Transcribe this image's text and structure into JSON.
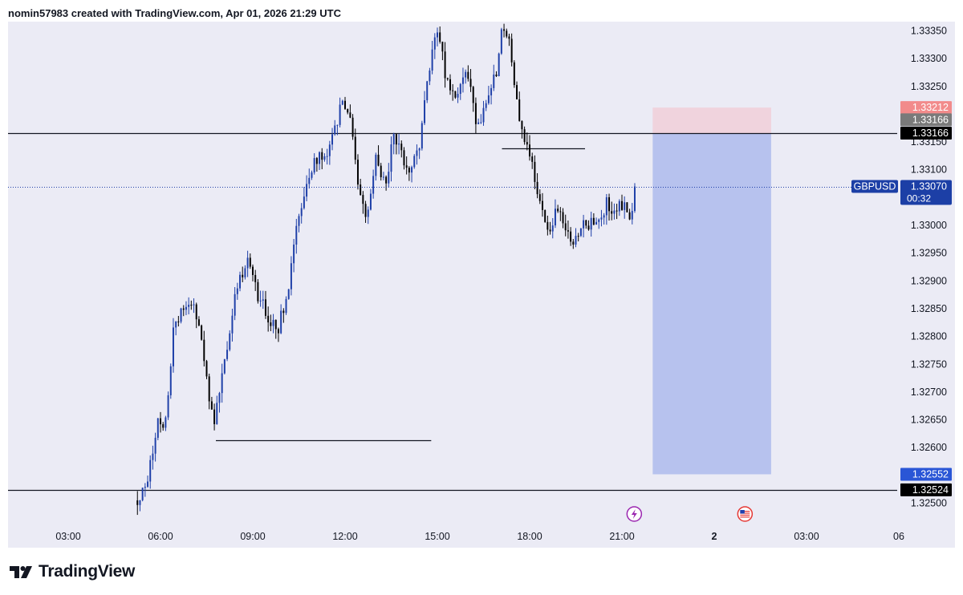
{
  "header": {
    "caption": "nomin57983 created with TradingView.com, Apr 01, 2026 21:29 UTC"
  },
  "footer": {
    "brand": "TradingView",
    "logo_icon": "tradingview-logo-icon"
  },
  "colors": {
    "background": "#ebebf5",
    "bull": "#1e3fa8",
    "bear": "#000000",
    "profit_zone": "#b7c2ee",
    "loss_zone": "#f0d3dd",
    "symbol_label": "#1c3fa6",
    "stop_label": "#f28b8b",
    "mid_label": "#7a7a7a",
    "line_label": "#000000",
    "target_label": "#2a56d6"
  },
  "chart_data": {
    "type": "candlestick",
    "symbol": "GBPUSD",
    "last_price": 1.3307,
    "countdown": "00:32",
    "ylim": [
      1.3246,
      1.33365
    ],
    "xlim": [
      1.5,
      30.3
    ],
    "y_ticks": [
      "1.32500",
      "1.32550",
      "1.32600",
      "1.32650",
      "1.32700",
      "1.32750",
      "1.32800",
      "1.32850",
      "1.32900",
      "1.32950",
      "1.33000",
      "1.33050",
      "1.33100",
      "1.33150",
      "1.33200",
      "1.33250",
      "1.33300",
      "1.33350"
    ],
    "x_ticks": [
      {
        "label": "03:00",
        "t": 3
      },
      {
        "label": "06:00",
        "t": 6
      },
      {
        "label": "09:00",
        "t": 9
      },
      {
        "label": "12:00",
        "t": 12
      },
      {
        "label": "15:00",
        "t": 15
      },
      {
        "label": "18:00",
        "t": 18
      },
      {
        "label": "21:00",
        "t": 21
      },
      {
        "label": "2",
        "t": 24
      },
      {
        "label": "03:00",
        "t": 27
      },
      {
        "label": "06",
        "t": 30
      }
    ],
    "horizontal_lines": [
      {
        "price": 1.33166,
        "label": "1.33166"
      },
      {
        "price": 1.32524,
        "label": "1.32524"
      }
    ],
    "level_segments": [
      {
        "price": 1.32614,
        "t_start": 7.8,
        "t_end": 14.8
      },
      {
        "price": 1.33139,
        "t_start": 17.1,
        "t_end": 19.8
      }
    ],
    "position": {
      "side": "short",
      "entry": 1.33166,
      "stop": 1.33212,
      "target": 1.32552,
      "t_start": 22.0,
      "t_end": 25.85,
      "labels": {
        "stop": "1.33212",
        "entry": "1.33166",
        "target": "1.32552"
      }
    },
    "event_markers": [
      {
        "t": 21.4,
        "icon": "lightning-icon"
      },
      {
        "t": 25.0,
        "icon": "us-flag-icon"
      }
    ],
    "candle_interval_minutes": 5,
    "anchors": [
      [
        5.25,
        1.32505
      ],
      [
        5.6,
        1.32555
      ],
      [
        5.95,
        1.3265
      ],
      [
        6.15,
        1.3264
      ],
      [
        6.4,
        1.328
      ],
      [
        6.8,
        1.3286
      ],
      [
        7.1,
        1.3285
      ],
      [
        7.3,
        1.3282
      ],
      [
        7.6,
        1.3268
      ],
      [
        7.75,
        1.3264
      ],
      [
        8.1,
        1.3276
      ],
      [
        8.5,
        1.3289
      ],
      [
        8.85,
        1.3294
      ],
      [
        9.2,
        1.3287
      ],
      [
        9.6,
        1.3282
      ],
      [
        9.8,
        1.3281
      ],
      [
        10.2,
        1.329
      ],
      [
        10.5,
        1.3302
      ],
      [
        11.0,
        1.3311
      ],
      [
        11.5,
        1.3314
      ],
      [
        11.9,
        1.3322
      ],
      [
        12.1,
        1.3321
      ],
      [
        12.4,
        1.3309
      ],
      [
        12.7,
        1.33
      ],
      [
        13.0,
        1.3312
      ],
      [
        13.3,
        1.3307
      ],
      [
        13.6,
        1.3317
      ],
      [
        14.0,
        1.331
      ],
      [
        14.4,
        1.3314
      ],
      [
        14.75,
        1.3329
      ],
      [
        15.0,
        1.3336
      ],
      [
        15.4,
        1.3323
      ],
      [
        15.7,
        1.3325
      ],
      [
        16.0,
        1.3327
      ],
      [
        16.3,
        1.3318
      ],
      [
        16.6,
        1.3323
      ],
      [
        16.9,
        1.3327
      ],
      [
        17.1,
        1.3335
      ],
      [
        17.35,
        1.3334
      ],
      [
        17.6,
        1.3321
      ],
      [
        17.9,
        1.3314
      ],
      [
        18.1,
        1.3311
      ],
      [
        18.3,
        1.3305
      ],
      [
        18.6,
        1.3299
      ],
      [
        18.9,
        1.3303
      ],
      [
        19.2,
        1.3298
      ],
      [
        19.5,
        1.3297
      ],
      [
        19.8,
        1.3301
      ],
      [
        20.1,
        1.33
      ],
      [
        20.5,
        1.3304
      ],
      [
        20.8,
        1.3303
      ],
      [
        21.1,
        1.3304
      ],
      [
        21.35,
        1.3301
      ],
      [
        21.45,
        1.3307
      ]
    ]
  }
}
